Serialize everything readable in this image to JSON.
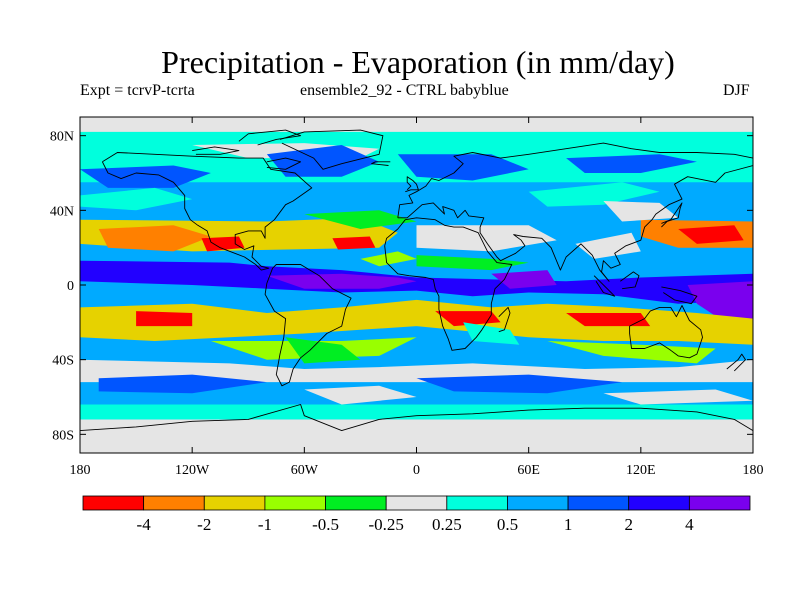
{
  "title": "Precipitation - Evaporation (in mm/day)",
  "subtitle_left": "Expt = tcrvP-tcrta",
  "subtitle_center": "ensemble2_92 - CTRL babyblue",
  "subtitle_right": "DJF",
  "map": {
    "projection": "cylindrical-equidistant",
    "lon_range": [
      -180,
      180
    ],
    "lat_range": [
      -90,
      90
    ],
    "lon_ticks": [
      {
        "value": -180,
        "label": "180"
      },
      {
        "value": -120,
        "label": "120W"
      },
      {
        "value": -60,
        "label": "60W"
      },
      {
        "value": 0,
        "label": "0"
      },
      {
        "value": 60,
        "label": "60E"
      },
      {
        "value": 120,
        "label": "120E"
      },
      {
        "value": 180,
        "label": "180"
      }
    ],
    "lat_ticks": [
      {
        "value": 80,
        "label": "80N"
      },
      {
        "value": 40,
        "label": "40N"
      },
      {
        "value": 0,
        "label": "0"
      },
      {
        "value": -40,
        "label": "40S"
      },
      {
        "value": -80,
        "label": "80S"
      }
    ],
    "coastline_color": "#000000"
  },
  "colorbar": {
    "colors": [
      "#ff0000",
      "#ff8000",
      "#e6d200",
      "#99ff00",
      "#00ee22",
      "#e5e5e5",
      "#00ffdd",
      "#00aaff",
      "#0055ff",
      "#2200ff",
      "#7a00ee"
    ],
    "labels": [
      "-4",
      "-2",
      "-1",
      "-0.5",
      "-0.25",
      "0.25",
      "0.5",
      "1",
      "2",
      "4"
    ]
  }
}
